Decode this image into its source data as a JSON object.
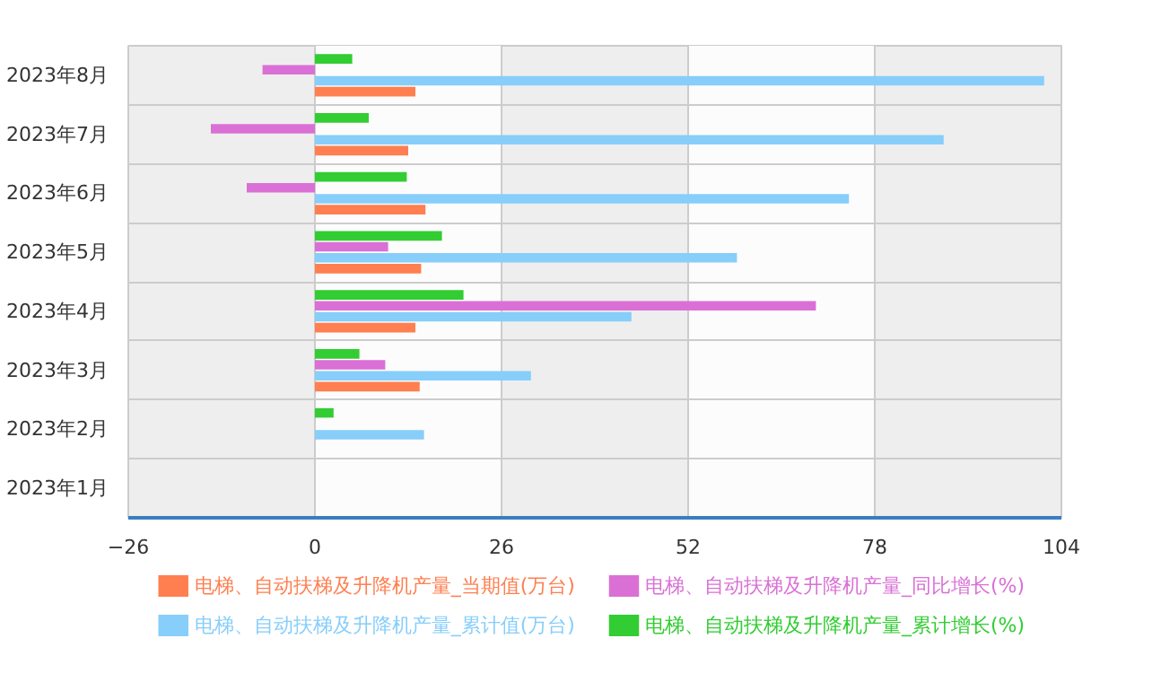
{
  "chart_data": {
    "type": "bar",
    "orientation": "horizontal",
    "categories": [
      "2023年8月",
      "2023年7月",
      "2023年6月",
      "2023年5月",
      "2023年4月",
      "2023年3月",
      "2023年2月",
      "2023年1月"
    ],
    "series": [
      {
        "name": "电梯、自动扶梯及升降机产量_当期值(万台)",
        "color": "#ff7f50",
        "values": [
          14.0,
          13.0,
          15.4,
          14.8,
          14.0,
          14.6,
          null,
          null
        ]
      },
      {
        "name": "电梯、自动扶梯及升降机产量_累计值(万台)",
        "color": "#87cefa",
        "values": [
          101.6,
          87.6,
          74.4,
          58.8,
          44.1,
          30.1,
          15.2,
          null
        ]
      },
      {
        "name": "电梯、自动扶梯及升降机产量_同比增长(%)",
        "color": "#da70d6",
        "values": [
          -7.3,
          -14.5,
          -9.5,
          10.2,
          69.8,
          9.8,
          null,
          null
        ]
      },
      {
        "name": "电梯、自动扶梯及升降机产量_累计增长(%)",
        "color": "#32cd32",
        "values": [
          5.2,
          7.5,
          12.8,
          17.7,
          20.7,
          6.2,
          2.6,
          null
        ]
      }
    ],
    "xlim": [
      -26,
      104
    ],
    "xticks": [
      -26,
      0,
      26,
      52,
      78,
      104
    ],
    "grid": true,
    "legend": "bottom"
  }
}
